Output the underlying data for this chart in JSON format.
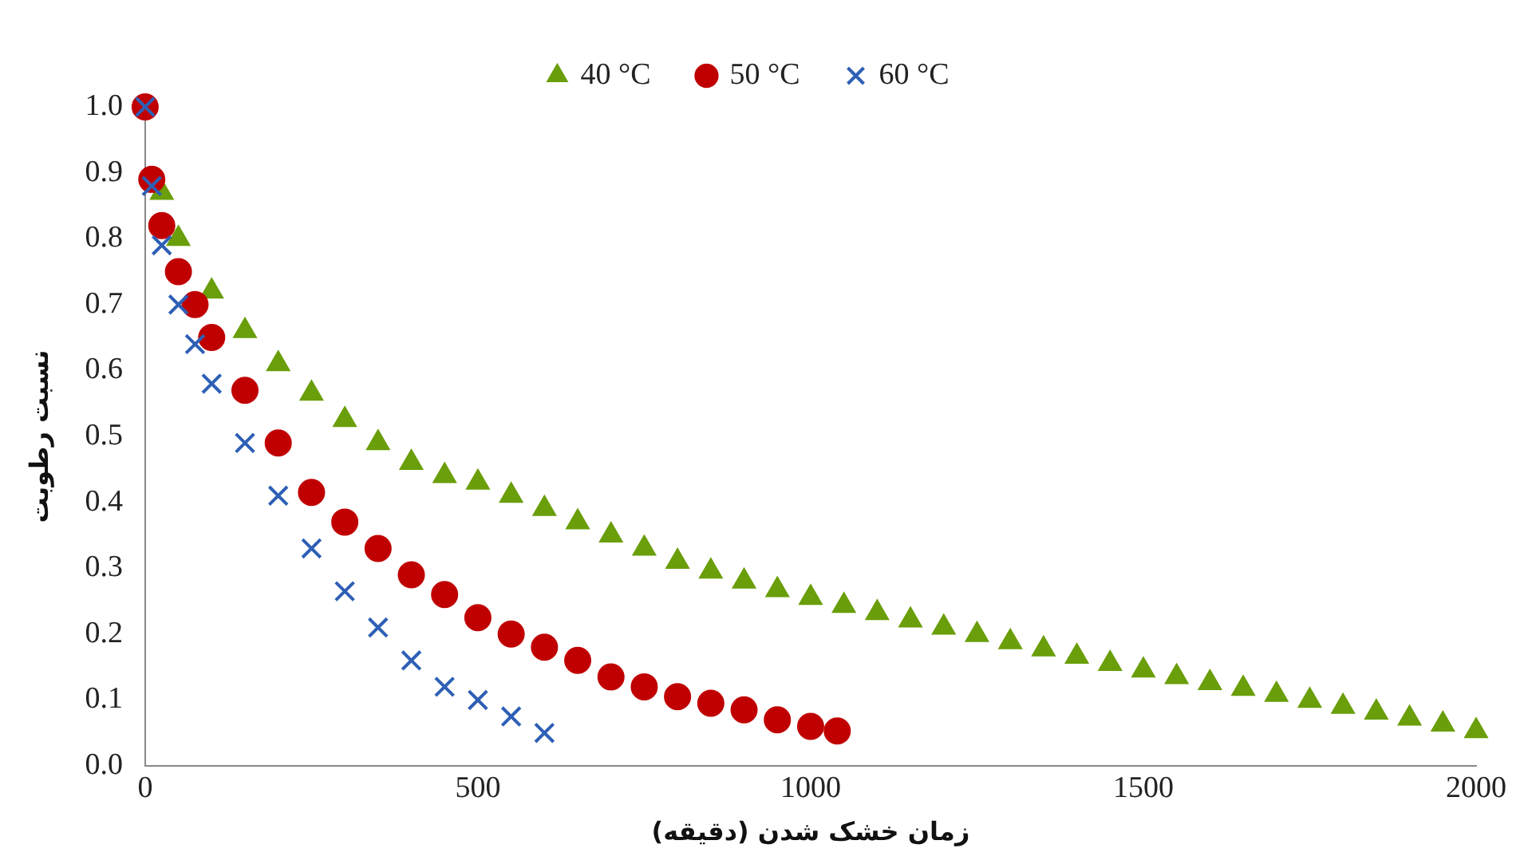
{
  "chart_data": {
    "type": "scatter",
    "xlabel": "زمان خشک شدن (دقیقه)",
    "ylabel": "نسبت رطوبت",
    "legend": "top",
    "grid": false,
    "xlim": [
      0,
      2000
    ],
    "xticks": [
      0,
      500,
      1000,
      1500,
      2000
    ],
    "ylim": [
      0,
      1
    ],
    "yticks": [
      {
        "value": 0,
        "label": "0.0"
      },
      {
        "value": 0.1,
        "label": "0.1"
      },
      {
        "value": 0.2,
        "label": "0.2"
      },
      {
        "value": 0.3,
        "label": "0.3"
      },
      {
        "value": 0.4,
        "label": "0.4"
      },
      {
        "value": 0.5,
        "label": "0.5"
      },
      {
        "value": 0.6,
        "label": "0.6"
      },
      {
        "value": 0.7,
        "label": "0.7"
      },
      {
        "value": 0.8,
        "label": "0.8"
      },
      {
        "value": 0.9,
        "label": "0.9"
      },
      {
        "value": 1,
        "label": "1.0"
      }
    ],
    "series": [
      {
        "name": "40 °C",
        "color": "#6a9e0a",
        "marker": "triangle",
        "x": [
          25,
          50,
          100,
          150,
          200,
          250,
          300,
          350,
          400,
          450,
          500,
          550,
          600,
          650,
          700,
          750,
          800,
          850,
          900,
          950,
          1000,
          1050,
          1100,
          1150,
          1200,
          1250,
          1300,
          1350,
          1400,
          1450,
          1500,
          1550,
          1600,
          1650,
          1700,
          1750,
          1800,
          1850,
          1900,
          1950,
          2000
        ],
        "values": [
          0.87,
          0.8,
          0.72,
          0.66,
          0.61,
          0.565,
          0.525,
          0.49,
          0.46,
          0.44,
          0.43,
          0.41,
          0.39,
          0.37,
          0.35,
          0.33,
          0.31,
          0.295,
          0.28,
          0.267,
          0.255,
          0.243,
          0.232,
          0.221,
          0.21,
          0.199,
          0.188,
          0.177,
          0.166,
          0.155,
          0.145,
          0.135,
          0.126,
          0.117,
          0.108,
          0.099,
          0.09,
          0.081,
          0.072,
          0.063,
          0.053
        ]
      },
      {
        "name": "50 °C",
        "color": "#c00000",
        "marker": "circle",
        "x": [
          0,
          10,
          25,
          50,
          75,
          100,
          150,
          200,
          250,
          300,
          350,
          400,
          450,
          500,
          550,
          600,
          650,
          700,
          750,
          800,
          850,
          900,
          950,
          1000,
          1040
        ],
        "values": [
          1.0,
          0.89,
          0.82,
          0.75,
          0.7,
          0.65,
          0.57,
          0.49,
          0.415,
          0.37,
          0.33,
          0.29,
          0.26,
          0.225,
          0.2,
          0.18,
          0.16,
          0.135,
          0.12,
          0.105,
          0.095,
          0.085,
          0.07,
          0.06,
          0.053
        ]
      },
      {
        "name": "60 °C",
        "color": "#2e5fb5",
        "marker": "cross",
        "x": [
          0,
          10,
          25,
          50,
          75,
          100,
          150,
          200,
          250,
          300,
          350,
          400,
          450,
          500,
          550,
          600
        ],
        "values": [
          1.0,
          0.88,
          0.79,
          0.7,
          0.64,
          0.58,
          0.49,
          0.41,
          0.33,
          0.265,
          0.21,
          0.16,
          0.12,
          0.1,
          0.075,
          0.05
        ]
      }
    ]
  }
}
